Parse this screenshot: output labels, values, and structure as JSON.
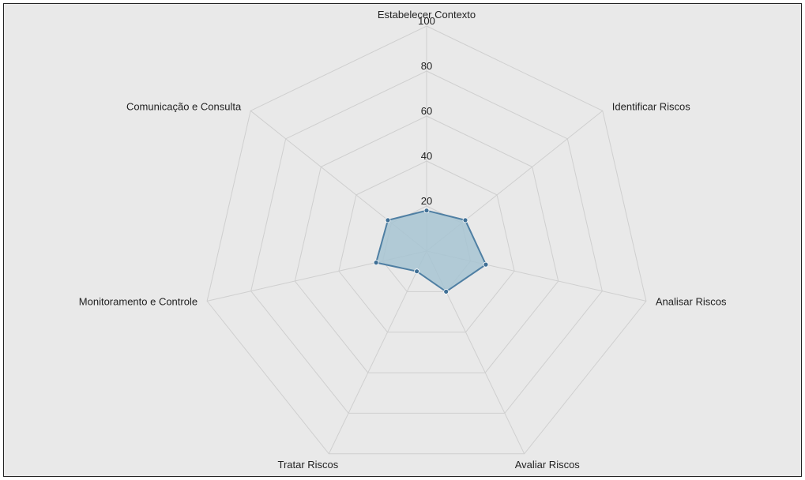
{
  "chart_data": {
    "type": "radar",
    "title": "",
    "axes": [
      "Estabelecer Contexto",
      "Identificar Riscos",
      "Analisar Riscos",
      "Avaliar Riscos",
      "Tratar Riscos",
      "Monitoramento e Controle",
      "Comunicação e Consulta"
    ],
    "r_ticks": [
      "20",
      "40",
      "60",
      "80",
      "100"
    ],
    "r_range": [
      0,
      100
    ],
    "series": [
      {
        "name": "",
        "values": [
          18,
          22,
          27,
          20,
          10,
          23,
          22
        ]
      }
    ],
    "colors": {
      "area_fill": "#a7c4d2",
      "line": "#4f7fa3",
      "point": "#3f6f95",
      "grid": "#cfcfcf",
      "background": "#e9e9e9"
    },
    "grid": true,
    "legend": "none"
  }
}
